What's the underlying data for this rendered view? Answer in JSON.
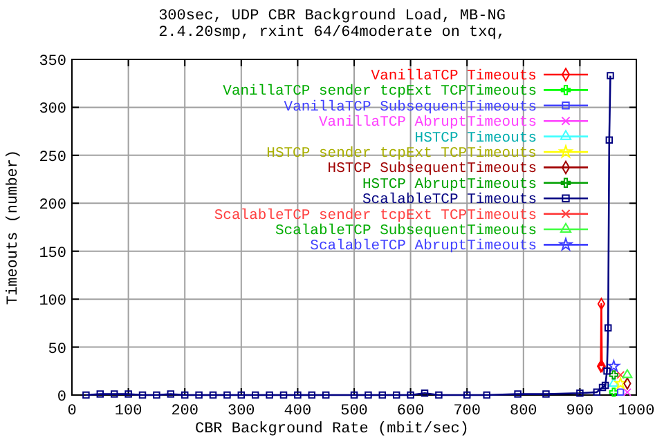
{
  "chart_data": {
    "type": "line",
    "title": "300sec, UDP CBR Background Load, MB-NG",
    "subtitle": "2.4.20smp, rxint 64/64moderate on txq,",
    "xlabel": "CBR Background Rate (mbit/sec)",
    "ylabel": "Timeouts (number)",
    "x": [
      25,
      50,
      75,
      100,
      125,
      150,
      175,
      200,
      225,
      250,
      275,
      300,
      325,
      350,
      375,
      400,
      425,
      450,
      500,
      525,
      550,
      575,
      600,
      625,
      650,
      700,
      735,
      790,
      840,
      900,
      930,
      940,
      945,
      948,
      950,
      952,
      954
    ],
    "xlim": [
      0,
      1000
    ],
    "xticks": [
      0,
      100,
      200,
      300,
      400,
      500,
      600,
      700,
      800,
      900,
      1000
    ],
    "ylim": [
      0,
      350
    ],
    "yticks": [
      0,
      50,
      100,
      150,
      200,
      250,
      300,
      350
    ],
    "grid": true,
    "legend": "top right",
    "series": [
      {
        "name": "VanillaTCP Timeouts",
        "color": "#ff0000",
        "marker": "diamond",
        "x": [
          937,
          938,
          939
        ],
        "values": [
          30,
          95,
          30
        ]
      },
      {
        "name": "VanillaTCP sender tcpExt TCPTimeouts",
        "color": "#00ff00",
        "marker": "plus",
        "x": [
          960
        ],
        "values": [
          3
        ]
      },
      {
        "name": "VanillaTCP SubsequentTimeouts",
        "color": "#4040ff",
        "marker": "square",
        "x": [
          972
        ],
        "values": [
          3
        ]
      },
      {
        "name": "VanillaTCP AbruptTimeouts",
        "color": "#ff40ff",
        "marker": "cross",
        "x": [
          984
        ],
        "values": [
          3
        ]
      },
      {
        "name": "HSTCP Timeouts",
        "color": "#40ffff",
        "marker": "triangle",
        "x": [
          960
        ],
        "values": [
          12
        ]
      },
      {
        "name": "HSTCP sender tcpExt TCPTimeouts",
        "color": "#ffff00",
        "marker": "star",
        "x": [
          972
        ],
        "values": [
          12
        ]
      },
      {
        "name": "HSTCP SubsequentTimeouts",
        "color": "#a00000",
        "marker": "diamond",
        "x": [
          984
        ],
        "values": [
          12
        ]
      },
      {
        "name": "HSTCP AbruptTimeouts",
        "color": "#00a000",
        "marker": "plus",
        "x": [
          960
        ],
        "values": [
          21
        ]
      },
      {
        "name": "ScalableTCP Timeouts",
        "color": "#000080",
        "marker": "square",
        "values": [
          0,
          1,
          1,
          1,
          0,
          0,
          1,
          0,
          0,
          0,
          0,
          0,
          0,
          0,
          0,
          0,
          0,
          0,
          0,
          0,
          0,
          0,
          0,
          2,
          0,
          0,
          0,
          1,
          1,
          2,
          3,
          8,
          10,
          25,
          70,
          266,
          333
        ]
      },
      {
        "name": "ScalableTCP sender tcpExt TCPTimeouts",
        "color": "#ff4040",
        "marker": "cross",
        "x": [
          972
        ],
        "values": [
          21
        ]
      },
      {
        "name": "ScalableTCP SubsequentTimeouts",
        "color": "#40ff40",
        "marker": "triangle",
        "x": [
          984
        ],
        "values": [
          21
        ]
      },
      {
        "name": "ScalableTCP AbruptTimeouts",
        "color": "#4040ff",
        "marker": "star",
        "x": [
          960
        ],
        "values": [
          30
        ]
      }
    ]
  }
}
